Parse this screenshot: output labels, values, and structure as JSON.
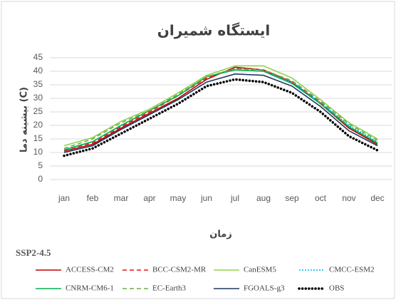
{
  "chart_data": {
    "type": "line",
    "title": "ایستگاه شمیران",
    "ylabel": "بیشینه دما (C)",
    "xlabel": "زمان",
    "annotation": "SSP2-4.5",
    "categories": [
      "jan",
      "feb",
      "mar",
      "apr",
      "may",
      "jun",
      "jul",
      "aug",
      "sep",
      "oct",
      "nov",
      "dec"
    ],
    "ylim": [
      0,
      45
    ],
    "yticks": [
      0,
      5,
      10,
      15,
      20,
      25,
      30,
      35,
      40,
      45
    ],
    "grid": true,
    "series": [
      {
        "name": "ACCESS-CM2",
        "color": "#c00000",
        "dash": "solid",
        "values": [
          10.5,
          13,
          19,
          24.5,
          30,
          37,
          41.5,
          40.5,
          36,
          28,
          19,
          13
        ]
      },
      {
        "name": "BCC-CSM2-MR",
        "color": "#e8141b",
        "dash": "dashed",
        "values": [
          11,
          13.5,
          19.5,
          25,
          31,
          37.5,
          41,
          40.5,
          36,
          28.5,
          19.5,
          13.5
        ]
      },
      {
        "name": "CanESM5",
        "color": "#92d050",
        "dash": "solid",
        "values": [
          12.5,
          15.5,
          21.5,
          26,
          32,
          38.5,
          42,
          42,
          37.5,
          29.5,
          21,
          15
        ]
      },
      {
        "name": "CMCC-ESM2",
        "color": "#00b0f0",
        "dash": "dotted",
        "values": [
          11,
          14,
          20,
          25.5,
          31,
          38,
          40.5,
          40,
          36,
          28.5,
          20,
          14
        ]
      },
      {
        "name": "CNRM-CM6-1",
        "color": "#00b050",
        "dash": "solid",
        "values": [
          11,
          14,
          20,
          25.5,
          31,
          38,
          40.5,
          40,
          35.5,
          28,
          19.5,
          13.5
        ]
      },
      {
        "name": "EC-Earth3",
        "color": "#70ad47",
        "dash": "dashed",
        "values": [
          11.5,
          15,
          21,
          25.5,
          31.5,
          38,
          41,
          40.5,
          36.5,
          29,
          20.5,
          14.5
        ]
      },
      {
        "name": "FGOALS-g3",
        "color": "#1f3864",
        "dash": "solid",
        "values": [
          10,
          12.5,
          18.5,
          24,
          29.5,
          36,
          39,
          38.5,
          34.5,
          27,
          18,
          12.5
        ]
      },
      {
        "name": "OBS",
        "color": "#000000",
        "dash": "thickdot",
        "values": [
          8.8,
          11.5,
          17,
          22.5,
          28,
          34.5,
          37,
          36,
          32,
          25,
          16,
          10.8
        ]
      }
    ]
  }
}
